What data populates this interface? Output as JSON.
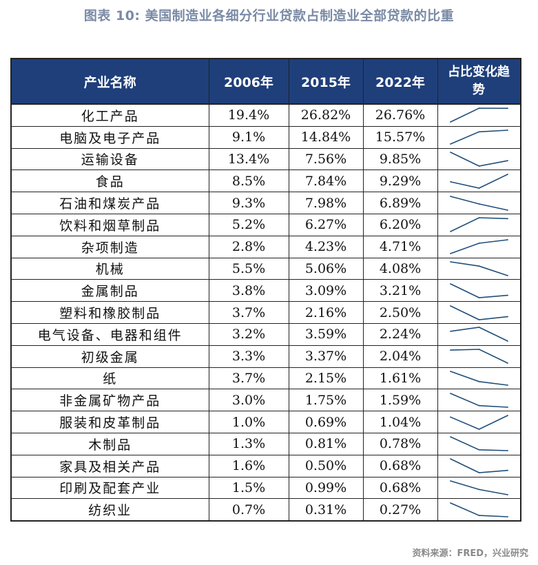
{
  "title": "图表 10: 美国制造业各细分行业贷款占制造业全部贷款的比重",
  "source": "资料来源：FRED，兴业研究",
  "colors": {
    "header_bg": "#1f3f7a",
    "sparkline": "#1f4e79",
    "title": "#7a8aa5"
  },
  "chart_data": {
    "type": "table",
    "columns": [
      "产业名称",
      "2006年",
      "2015年",
      "2022年",
      "占比变化趋势"
    ],
    "years": [
      "2006年",
      "2015年",
      "2022年"
    ],
    "rows": [
      {
        "name": "化工产品",
        "cells": [
          "19.4%",
          "26.82%",
          "26.76%"
        ],
        "values": [
          19.4,
          26.82,
          26.76
        ]
      },
      {
        "name": "电脑及电子产品",
        "cells": [
          "9.1%",
          "14.84%",
          "15.57%"
        ],
        "values": [
          9.1,
          14.84,
          15.57
        ]
      },
      {
        "name": "运输设备",
        "cells": [
          "13.4%",
          "7.56%",
          "9.85%"
        ],
        "values": [
          13.4,
          7.56,
          9.85
        ]
      },
      {
        "name": "食品",
        "cells": [
          "8.5%",
          "7.84%",
          "9.29%"
        ],
        "values": [
          8.5,
          7.84,
          9.29
        ]
      },
      {
        "name": "石油和煤炭产品",
        "cells": [
          "9.3%",
          "7.98%",
          "6.89%"
        ],
        "values": [
          9.3,
          7.98,
          6.89
        ]
      },
      {
        "name": "饮料和烟草制品",
        "cells": [
          "5.2%",
          "6.27%",
          "6.20%"
        ],
        "values": [
          5.2,
          6.27,
          6.2
        ]
      },
      {
        "name": "杂项制造",
        "cells": [
          "2.8%",
          "4.23%",
          "4.71%"
        ],
        "values": [
          2.8,
          4.23,
          4.71
        ]
      },
      {
        "name": "机械",
        "cells": [
          "5.5%",
          "5.06%",
          "4.08%"
        ],
        "values": [
          5.5,
          5.06,
          4.08
        ]
      },
      {
        "name": "金属制品",
        "cells": [
          "3.8%",
          "3.09%",
          "3.21%"
        ],
        "values": [
          3.8,
          3.09,
          3.21
        ]
      },
      {
        "name": "塑料和橡胶制品",
        "cells": [
          "3.7%",
          "2.16%",
          "2.50%"
        ],
        "values": [
          3.7,
          2.16,
          2.5
        ]
      },
      {
        "name": "电气设备、电器和组件",
        "cells": [
          "3.2%",
          "3.59%",
          "2.24%"
        ],
        "values": [
          3.2,
          3.59,
          2.24
        ]
      },
      {
        "name": "初级金属",
        "cells": [
          "3.3%",
          "3.37%",
          "2.04%"
        ],
        "values": [
          3.3,
          3.37,
          2.04
        ]
      },
      {
        "name": "纸",
        "cells": [
          "3.7%",
          "2.15%",
          "1.61%"
        ],
        "values": [
          3.7,
          2.15,
          1.61
        ]
      },
      {
        "name": "非金属矿物产品",
        "cells": [
          "3.0%",
          "1.75%",
          "1.59%"
        ],
        "values": [
          3.0,
          1.75,
          1.59
        ]
      },
      {
        "name": "服装和皮革制品",
        "cells": [
          "1.0%",
          "0.69%",
          "1.04%"
        ],
        "values": [
          1.0,
          0.69,
          1.04
        ]
      },
      {
        "name": "木制品",
        "cells": [
          "1.3%",
          "0.81%",
          "0.78%"
        ],
        "values": [
          1.3,
          0.81,
          0.78
        ]
      },
      {
        "name": "家具及相关产品",
        "cells": [
          "1.6%",
          "0.50%",
          "0.68%"
        ],
        "values": [
          1.6,
          0.5,
          0.68
        ]
      },
      {
        "name": "印刷及配套产业",
        "cells": [
          "1.5%",
          "0.99%",
          "0.68%"
        ],
        "values": [
          1.5,
          0.99,
          0.68
        ]
      },
      {
        "name": "纺织业",
        "cells": [
          "0.7%",
          "0.31%",
          "0.27%"
        ],
        "values": [
          0.7,
          0.31,
          0.27
        ]
      }
    ]
  }
}
